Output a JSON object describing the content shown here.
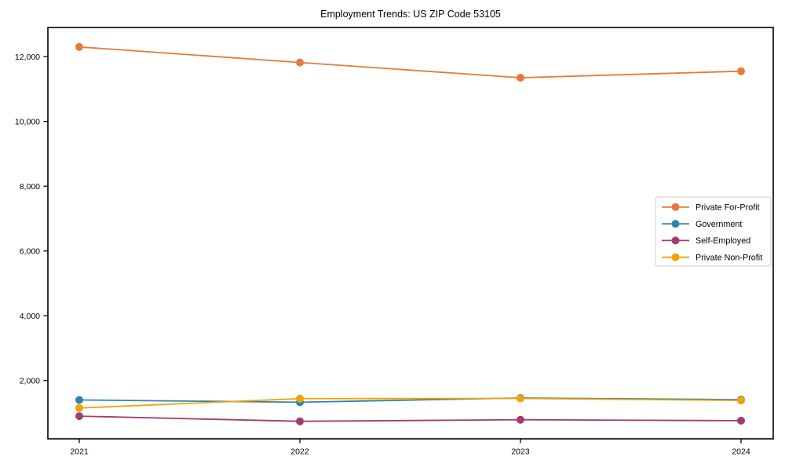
{
  "chart_data": {
    "type": "line",
    "title": "Employment Trends: US ZIP Code 53105",
    "categories": [
      "2021",
      "2022",
      "2023",
      "2024"
    ],
    "series": [
      {
        "name": "Private For-Profit",
        "color": "#E8793B",
        "values": [
          12300,
          11820,
          11350,
          11550
        ]
      },
      {
        "name": "Government",
        "color": "#2E86AB",
        "values": [
          1400,
          1330,
          1460,
          1410
        ]
      },
      {
        "name": "Self-Employed",
        "color": "#A23B72",
        "values": [
          900,
          740,
          790,
          760
        ]
      },
      {
        "name": "Private Non-Profit",
        "color": "#F1A208",
        "values": [
          1150,
          1440,
          1445,
          1385
        ]
      }
    ],
    "xlabel": "",
    "ylabel": "",
    "ylim": [
      200,
      12900
    ],
    "y_ticks": [
      2000,
      4000,
      6000,
      8000,
      10000,
      12000
    ],
    "grid": false,
    "legend_position": "center-right",
    "marker": "circle",
    "axis_color": "#000000",
    "legend_border_color": "#cccccc"
  }
}
